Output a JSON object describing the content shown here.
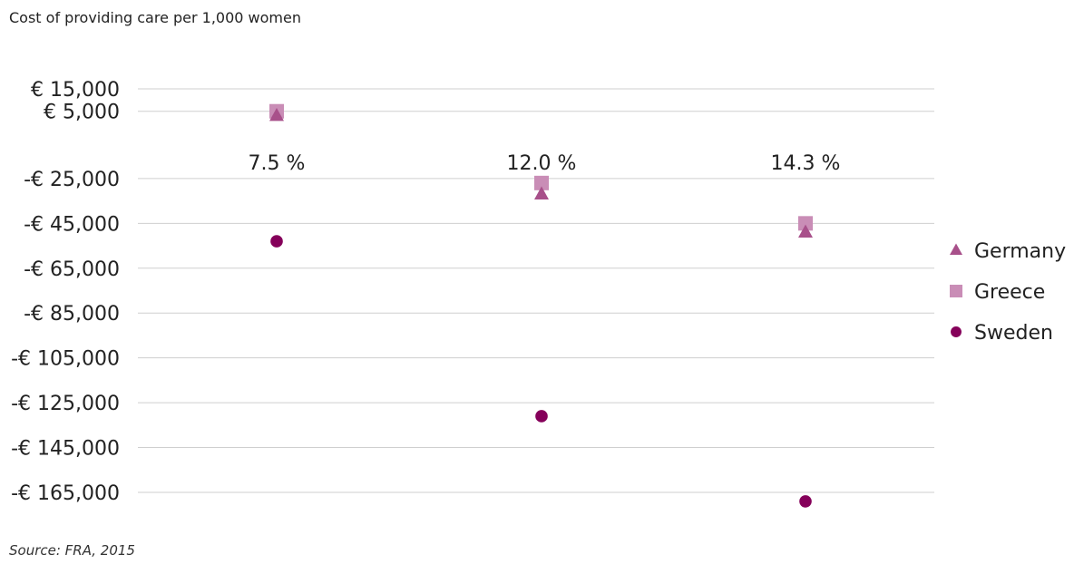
{
  "title": "Cost of providing care per 1,000 women",
  "source": "Source: FRA, 2015",
  "chart_data": {
    "type": "scatter",
    "categories": [
      "7.5 %",
      "12.0 %",
      "14.3 %"
    ],
    "ylim": [
      -165000,
      15000
    ],
    "yticks": [
      15000,
      5000,
      -25000,
      -45000,
      -65000,
      -85000,
      -105000,
      -125000,
      -145000,
      -165000
    ],
    "ytick_labels": [
      "€ 15,000",
      "€ 5,000",
      "-€ 25,000",
      "-€ 45,000",
      "-€ 65,000",
      "-€ 85,000",
      "-€ 105,000",
      "-€ 125,000",
      "-€ 145,000",
      "-€ 165,000"
    ],
    "grid": true,
    "legend_position": "right",
    "series": [
      {
        "name": "Germany",
        "marker": "triangle",
        "color": "#a8508a",
        "values": [
          3000,
          -32000,
          -49000
        ]
      },
      {
        "name": "Greece",
        "marker": "square",
        "color": "#c98db6",
        "values": [
          5000,
          -27000,
          -45000
        ]
      },
      {
        "name": "Sweden",
        "marker": "circle",
        "color": "#85005a",
        "values": [
          -53000,
          -131000,
          -169000
        ]
      }
    ]
  }
}
